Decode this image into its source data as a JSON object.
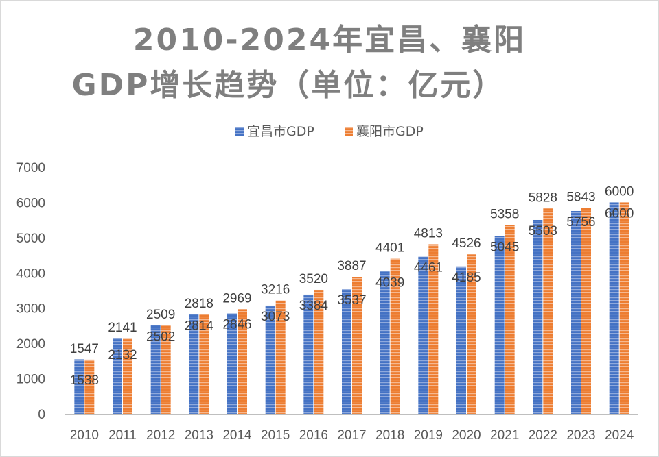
{
  "chart_data": {
    "type": "bar",
    "title_line1": "2010-2024年宜昌、襄阳",
    "title_line2": "GDP增长趋势（单位：亿元）",
    "categories": [
      "2010",
      "2011",
      "2012",
      "2013",
      "2014",
      "2015",
      "2016",
      "2017",
      "2018",
      "2019",
      "2020",
      "2021",
      "2022",
      "2023",
      "2024"
    ],
    "series": [
      {
        "name": "宜昌市GDP",
        "color": "#4472C4",
        "values": [
          1547,
          2141,
          2509,
          2818,
          2846,
          3073,
          3384,
          3537,
          4039,
          4461,
          4185,
          5045,
          5503,
          5756,
          6000
        ]
      },
      {
        "name": "襄阳市GDP",
        "color": "#ED7D31",
        "values": [
          1538,
          2132,
          2502,
          2814,
          2969,
          3216,
          3520,
          3887,
          4401,
          4813,
          4526,
          5358,
          5828,
          5843,
          6000
        ]
      }
    ],
    "ylim": [
      0,
      7000
    ],
    "yticks": [
      "0",
      "1000",
      "2000",
      "3000",
      "4000",
      "5000",
      "6000",
      "7000"
    ],
    "legend_position": "top-center",
    "grid": false
  }
}
